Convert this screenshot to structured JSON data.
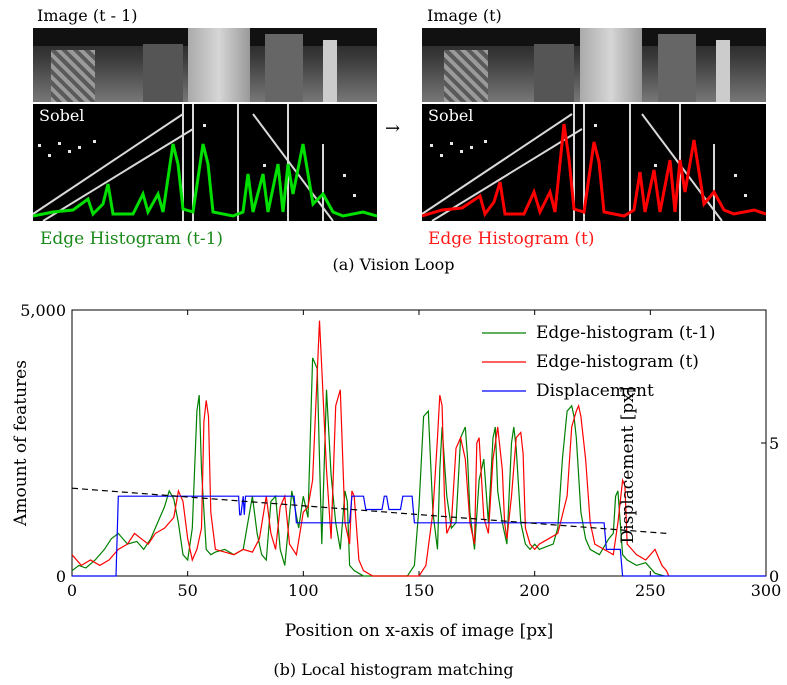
{
  "panel_a": {
    "left_title": "Image (t - 1)",
    "right_title": "Image (t)",
    "left_sobel": "Sobel",
    "right_sobel": "Sobel",
    "left_hist_label": "Edge Histogram (t-1)",
    "right_hist_label": "Edge Histogram (t)",
    "left_color": "#00e000",
    "right_color": "#ff0000",
    "caption": "(a) Vision Loop"
  },
  "panel_b": {
    "caption": "(b) Local histogram matching"
  },
  "chart_data": {
    "type": "line",
    "xlabel": "Position on x-axis of image [px]",
    "ylabel": "Amount of features",
    "y2label": "Displacement [px]",
    "xlim": [
      0,
      300
    ],
    "ylim": [
      0,
      5000
    ],
    "y2lim": [
      0,
      10
    ],
    "xticks": [
      0,
      50,
      100,
      150,
      200,
      250,
      300
    ],
    "yticks": [
      0,
      5000
    ],
    "ytick_labels": [
      "0",
      "5,000"
    ],
    "y2ticks": [
      0,
      5
    ],
    "legend_position": "top-right",
    "series": [
      {
        "name": "Edge-histogram (t-1)",
        "color": "#008000",
        "axis": "left",
        "x": [
          0,
          3,
          6,
          10,
          14,
          17,
          20,
          24,
          28,
          31,
          34,
          37,
          40,
          42,
          44,
          46,
          48,
          50,
          52,
          54,
          55,
          56,
          58,
          60,
          62,
          66,
          70,
          74,
          78,
          80,
          82,
          84,
          86,
          88,
          90,
          92,
          95,
          98,
          100,
          102,
          104,
          106,
          107,
          108,
          110,
          112,
          114,
          116,
          118,
          119,
          120,
          122,
          124,
          126,
          130,
          135,
          140,
          145,
          148,
          150,
          152,
          154,
          156,
          158,
          159,
          160,
          162,
          164,
          166,
          168,
          170,
          171,
          172,
          174,
          176,
          178,
          180,
          182,
          183,
          184,
          186,
          188,
          190,
          191,
          192,
          194,
          196,
          198,
          200,
          202,
          205,
          208,
          210,
          212,
          214,
          216,
          217,
          218,
          220,
          222,
          224,
          228,
          232,
          234,
          235,
          236,
          238,
          240,
          244,
          248,
          252,
          256
        ],
        "y": [
          100,
          200,
          150,
          300,
          500,
          700,
          800,
          600,
          650,
          500,
          700,
          1000,
          1300,
          1600,
          1450,
          1000,
          400,
          300,
          900,
          3100,
          3400,
          2000,
          500,
          400,
          450,
          500,
          400,
          500,
          1500,
          800,
          400,
          300,
          1400,
          1500,
          500,
          200,
          1600,
          900,
          1500,
          1100,
          4100,
          3900,
          2200,
          600,
          3500,
          1900,
          1000,
          500,
          1600,
          1400,
          200,
          100,
          50,
          0,
          0,
          0,
          0,
          0,
          200,
          1300,
          3000,
          3100,
          1200,
          500,
          2000,
          2800,
          1500,
          900,
          1000,
          2600,
          2800,
          2200,
          1200,
          500,
          1800,
          2200,
          1000,
          2600,
          2800,
          1600,
          1000,
          600,
          2500,
          2800,
          2400,
          1000,
          600,
          500,
          600,
          500,
          550,
          600,
          900,
          2200,
          3100,
          3200,
          3000,
          2600,
          1200,
          700,
          500,
          400,
          700,
          800,
          1500,
          1600,
          400,
          300,
          200,
          250,
          50,
          0
        ],
        "values_note_x_unit": "px"
      },
      {
        "name": "Edge-histogram (t)",
        "color": "#ff0000",
        "axis": "left",
        "x": [
          0,
          4,
          8,
          12,
          16,
          20,
          24,
          27,
          30,
          33,
          36,
          40,
          44,
          46,
          48,
          50,
          52,
          54,
          56,
          57,
          58,
          59,
          60,
          62,
          66,
          70,
          74,
          78,
          81,
          84,
          86,
          88,
          90,
          92,
          94,
          97,
          100,
          102,
          104,
          106,
          107,
          108,
          110,
          112,
          114,
          116,
          118,
          120,
          121,
          122,
          124,
          126,
          130,
          140,
          150,
          153,
          156,
          158,
          159,
          160,
          161,
          162,
          164,
          166,
          168,
          170,
          172,
          174,
          175,
          176,
          178,
          180,
          182,
          184,
          186,
          187,
          188,
          190,
          192,
          194,
          195,
          196,
          198,
          200,
          202,
          206,
          210,
          214,
          216,
          218,
          219,
          220,
          222,
          224,
          226,
          230,
          234,
          236,
          238,
          239,
          240,
          244,
          248,
          252,
          255,
          257,
          258
        ],
        "y": [
          400,
          200,
          300,
          200,
          300,
          500,
          600,
          800,
          700,
          600,
          800,
          900,
          1100,
          1600,
          1400,
          700,
          300,
          500,
          900,
          2900,
          3300,
          3000,
          1200,
          500,
          450,
          400,
          500,
          450,
          700,
          1500,
          800,
          500,
          1300,
          1500,
          600,
          400,
          1200,
          1300,
          1800,
          3800,
          4800,
          3900,
          2000,
          700,
          3200,
          3500,
          1000,
          600,
          1600,
          1500,
          300,
          100,
          0,
          0,
          0,
          200,
          1200,
          2600,
          3400,
          3200,
          1500,
          800,
          1000,
          2400,
          2600,
          2200,
          1000,
          600,
          2500,
          2600,
          1100,
          800,
          2200,
          2800,
          2000,
          1000,
          700,
          1500,
          2600,
          2700,
          2300,
          900,
          600,
          500,
          600,
          700,
          800,
          1500,
          2800,
          3100,
          3200,
          3000,
          2200,
          1000,
          600,
          500,
          400,
          1000,
          1800,
          1700,
          600,
          400,
          300,
          500,
          200,
          100,
          0
        ]
      },
      {
        "name": "Displacement",
        "color": "#0000ff",
        "axis": "right",
        "x": [
          0,
          19,
          20,
          72,
          72.5,
          73,
          74,
          74.5,
          75,
          96,
          97,
          120,
          121,
          126,
          127,
          134,
          135,
          136,
          137,
          142,
          143,
          147,
          148,
          230,
          231,
          237,
          238,
          300
        ],
        "y": [
          0,
          0,
          3,
          3,
          2.3,
          2.3,
          3,
          2.3,
          3,
          3,
          2,
          2,
          3,
          3,
          2.5,
          2.5,
          3,
          3,
          2.5,
          2.5,
          3,
          3,
          2,
          2,
          1,
          1,
          0,
          0
        ]
      },
      {
        "name": "",
        "style": "dashed",
        "color": "#000000",
        "axis": "right",
        "x": [
          0,
          257
        ],
        "y": [
          3.3,
          1.6
        ]
      }
    ]
  }
}
